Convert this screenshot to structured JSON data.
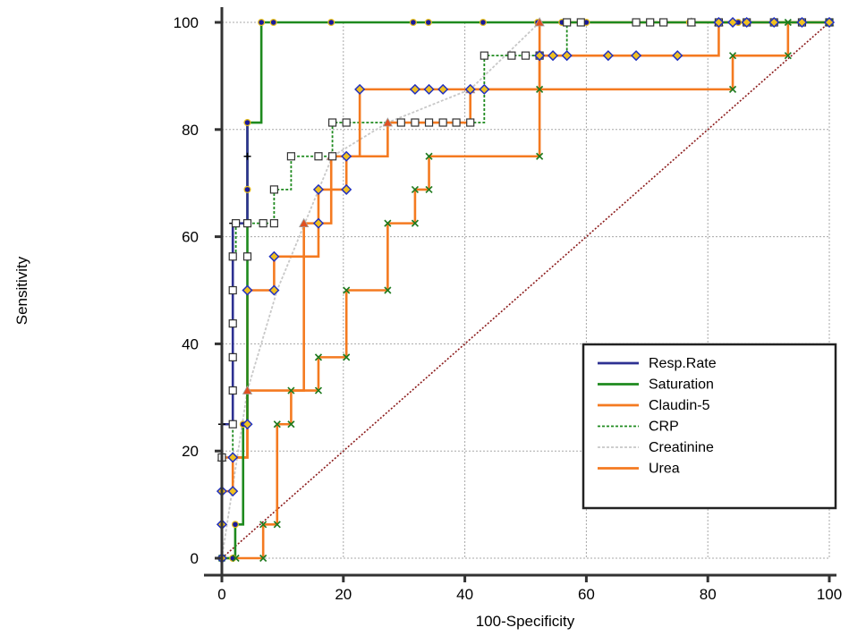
{
  "chart_data": {
    "type": "line",
    "title": "",
    "xlabel": "100-Specificity",
    "ylabel": "Sensitivity",
    "xlim": [
      0,
      100
    ],
    "ylim": [
      0,
      100
    ],
    "xticks": [
      "0",
      "20",
      "40",
      "60",
      "80",
      "100"
    ],
    "yticks": [
      "0",
      "20",
      "40",
      "60",
      "80",
      "100"
    ],
    "grid": true,
    "legend_position": "bottom-right",
    "reference_line": {
      "x": [
        0,
        100
      ],
      "y": [
        0,
        100
      ],
      "color": "#8b1a1a",
      "style": "dotted"
    },
    "series": [
      {
        "name": "Resp.Rate",
        "color": "#2e3192",
        "dash": "solid",
        "marker": "plus",
        "x": [
          0,
          0,
          0,
          0,
          0,
          1.8,
          1.8,
          1.8,
          1.8,
          4.2,
          4.2
        ],
        "y": [
          0,
          6.3,
          12.5,
          18.8,
          25,
          25,
          50,
          56.3,
          62.5,
          75,
          81.3
        ]
      },
      {
        "name": "Saturation",
        "color": "#1e8a1e",
        "dash": "solid",
        "marker": "dot",
        "x": [
          0,
          1.8,
          2.2,
          3.5,
          4.2,
          4.2,
          4.2,
          6.5,
          8.5,
          18,
          31.5,
          34,
          43,
          52,
          56,
          60,
          77,
          85,
          100
        ],
        "y": [
          0,
          0,
          6.3,
          25,
          50,
          68.8,
          81.3,
          100,
          100,
          100,
          100,
          100,
          100,
          100,
          100,
          100,
          100,
          100,
          100
        ]
      },
      {
        "name": "Claudin-5",
        "color": "#f47a20",
        "dash": "solid",
        "marker": "triangle",
        "x": [
          0,
          4.2,
          13.5,
          18,
          27.3,
          40.9,
          52.3,
          77.3,
          81.8,
          100
        ],
        "y": [
          18.8,
          31.3,
          62.5,
          75,
          81.3,
          87.5,
          100,
          100,
          100,
          100
        ]
      },
      {
        "name": "CRP",
        "color": "#1e8a1e",
        "dash": "dotted",
        "marker": "open-square",
        "x": [
          0,
          1.8,
          1.8,
          1.8,
          1.8,
          1.8,
          1.8,
          2.3,
          4.2,
          4.2,
          6.8,
          8.6,
          8.6,
          11.4,
          15.9,
          18.2,
          18.2,
          20.5,
          29.5,
          31.8,
          34.1,
          36.4,
          38.6,
          40.9,
          43.2,
          47.7,
          50,
          52.3,
          56.8,
          59.1,
          68.2,
          70.5,
          72.7,
          77.3,
          81.8,
          86.4,
          90.9,
          95.5,
          100
        ],
        "y": [
          18.8,
          25,
          31.3,
          37.5,
          43.8,
          50,
          56.3,
          62.5,
          56.3,
          62.5,
          62.5,
          62.5,
          68.8,
          75,
          75,
          75,
          81.3,
          81.3,
          81.3,
          81.3,
          81.3,
          81.3,
          81.3,
          81.3,
          93.8,
          93.8,
          93.8,
          93.8,
          100,
          100,
          100,
          100,
          100,
          100,
          100,
          100,
          100,
          100,
          100
        ]
      },
      {
        "name": "Creatinine",
        "color": "#c8c8c8",
        "dash": "dotted",
        "marker": "none",
        "x": [
          0,
          4.2,
          9.1,
          18.2,
          27.3,
          40.9,
          52.3,
          56.8,
          81.8,
          100
        ],
        "y": [
          0,
          31.3,
          50,
          75,
          81.3,
          87.5,
          100,
          100,
          100,
          100
        ]
      },
      {
        "name": "Urea",
        "color": "#f47a20",
        "dash": "solid",
        "marker": "x",
        "x": [
          0,
          2.3,
          6.8,
          6.8,
          9.1,
          9.1,
          11.4,
          11.4,
          15.9,
          15.9,
          20.5,
          20.5,
          27.3,
          27.3,
          31.8,
          31.8,
          34.1,
          34.1,
          52.3,
          52.3,
          84.1,
          84.1,
          93.2,
          93.2,
          100
        ],
        "y": [
          0,
          0,
          0,
          6.3,
          6.3,
          25,
          25,
          31.3,
          31.3,
          37.5,
          37.5,
          50,
          50,
          62.5,
          62.5,
          68.8,
          68.8,
          75,
          75,
          87.5,
          87.5,
          93.8,
          93.8,
          100,
          100
        ]
      },
      {
        "name": "",
        "legend": false,
        "color": "#f47a20",
        "dash": "solid",
        "marker": "diamond",
        "x": [
          0,
          0,
          0,
          1.8,
          1.8,
          4.2,
          4.2,
          8.6,
          8.6,
          15.9,
          15.9,
          20.5,
          20.5,
          22.7,
          31.8,
          34.1,
          36.4,
          40.9,
          43.2,
          52.3,
          54.5,
          56.8,
          63.6,
          68.2,
          75,
          81.8,
          84.1,
          86.4,
          90.9,
          95.5,
          100
        ],
        "y": [
          0,
          6.3,
          12.5,
          12.5,
          18.8,
          25,
          50,
          50,
          56.3,
          62.5,
          68.8,
          68.8,
          75,
          87.5,
          87.5,
          87.5,
          87.5,
          87.5,
          87.5,
          93.8,
          93.8,
          93.8,
          93.8,
          93.8,
          93.8,
          100,
          100,
          100,
          100,
          100,
          100
        ]
      }
    ]
  }
}
